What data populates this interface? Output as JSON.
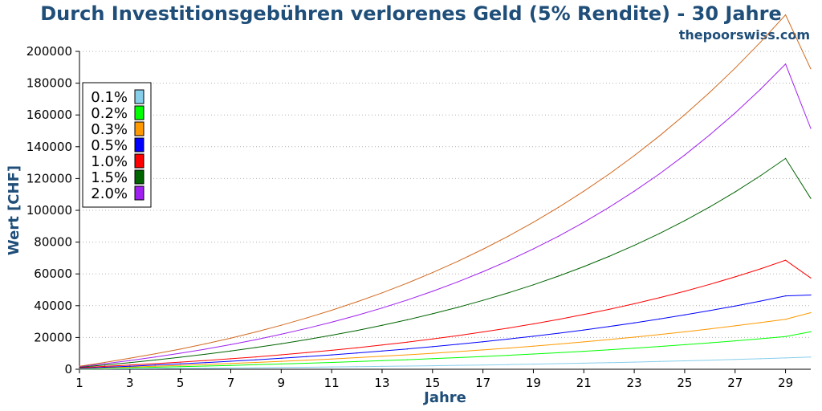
{
  "header": {
    "title": "Durch Investitionsgebühren verlorenes Geld (5% Rendite) - 30 Jahre",
    "source": "thepoorswiss.com"
  },
  "colors": {
    "title": "#1f4e79",
    "grid": "#b0b0b0"
  },
  "chart_data": {
    "type": "line",
    "title": "Durch Investitionsgebühren verlorenes Geld (5% Rendite) - 30 Jahre",
    "xlabel": "Jahre",
    "ylabel": "Wert [CHF]",
    "xlim": [
      1,
      30
    ],
    "ylim": [
      0,
      200000
    ],
    "x_ticks": [
      1,
      3,
      5,
      7,
      9,
      11,
      13,
      15,
      17,
      19,
      21,
      23,
      25,
      27,
      29
    ],
    "y_ticks": [
      0,
      20000,
      40000,
      60000,
      80000,
      100000,
      120000,
      140000,
      160000,
      180000,
      200000
    ],
    "grid": "horizontal dotted",
    "legend_position": "top-left",
    "x": [
      1,
      2,
      3,
      4,
      5,
      6,
      7,
      8,
      9,
      10,
      11,
      12,
      13,
      14,
      15,
      16,
      17,
      18,
      19,
      20,
      21,
      22,
      23,
      24,
      25,
      26,
      27,
      28,
      29,
      30
    ],
    "series": [
      {
        "name": "0.1%",
        "color": "#87ceeb",
        "values": [
          100,
          205,
          315,
          430,
          550,
          680,
          815,
          960,
          1110,
          1270,
          1440,
          1620,
          1810,
          2010,
          2220,
          2450,
          2690,
          2950,
          3230,
          3520,
          3830,
          4160,
          4510,
          4880,
          5280,
          5700,
          6150,
          6630,
          7140,
          7680
        ]
      },
      {
        "name": "0.2%",
        "color": "#00ff00",
        "values": [
          300,
          610,
          940,
          1280,
          1640,
          2030,
          2440,
          2870,
          3320,
          3800,
          4310,
          4850,
          5420,
          6020,
          6650,
          7320,
          8030,
          8780,
          9580,
          10420,
          11310,
          12260,
          13260,
          14320,
          15440,
          16620,
          17870,
          19200,
          20600,
          23650
        ]
      },
      {
        "name": "0.3%",
        "color": "#ff9900",
        "values": [
          450,
          920,
          1400,
          1920,
          2460,
          3040,
          3650,
          4300,
          4990,
          5710,
          6480,
          7300,
          8170,
          9090,
          10060,
          11090,
          12180,
          13340,
          14560,
          15860,
          17230,
          18680,
          20220,
          21840,
          23560,
          25380,
          27300,
          29330,
          31480,
          35620
        ]
      },
      {
        "name": "0.5%",
        "color": "#0000ff",
        "values": [
          600,
          1240,
          1910,
          2620,
          3380,
          4180,
          5040,
          5950,
          6920,
          7950,
          9050,
          10220,
          11470,
          12790,
          14200,
          15700,
          17290,
          18980,
          20780,
          22690,
          24720,
          26880,
          29170,
          31600,
          34180,
          36920,
          39820,
          42900,
          46170,
          46700
        ]
      },
      {
        "name": "1.0%",
        "color": "#ff0000",
        "values": [
          1000,
          1800,
          2630,
          3520,
          4470,
          5500,
          6610,
          7800,
          9080,
          10460,
          11940,
          13530,
          15240,
          17080,
          19060,
          21180,
          23460,
          25910,
          28550,
          31380,
          34430,
          37700,
          41220,
          45000,
          49060,
          53420,
          58110,
          63150,
          68570,
          57400
        ]
      },
      {
        "name": "1.5%",
        "color": "#006400",
        "values": [
          1300,
          2700,
          4200,
          5820,
          7570,
          9460,
          11500,
          13700,
          16080,
          18650,
          21420,
          24410,
          27640,
          31120,
          34880,
          38940,
          43320,
          48050,
          53150,
          58660,
          64600,
          71020,
          77940,
          85410,
          93470,
          102170,
          111560,
          121700,
          132640,
          107500
        ]
      },
      {
        "name": "2.0%",
        "color": "#a020f0",
        "values": [
          1600,
          3500,
          5500,
          7700,
          10100,
          12700,
          15550,
          18650,
          22000,
          25650,
          29600,
          33900,
          38550,
          43600,
          49050,
          54950,
          61350,
          68250,
          75700,
          83750,
          92450,
          101850,
          112000,
          122950,
          134750,
          147500,
          161250,
          176050,
          192000,
          151500
        ]
      },
      {
        "name": "",
        "color": "#d2691e",
        "values": [
          1900,
          4300,
          6900,
          9700,
          12700,
          16000,
          19600,
          23500,
          27700,
          32200,
          37100,
          42400,
          48100,
          54200,
          60800,
          67900,
          75500,
          83700,
          92500,
          101900,
          112000,
          122800,
          134400,
          146800,
          160100,
          174300,
          189500,
          205700,
          223000,
          189000
        ]
      }
    ]
  }
}
